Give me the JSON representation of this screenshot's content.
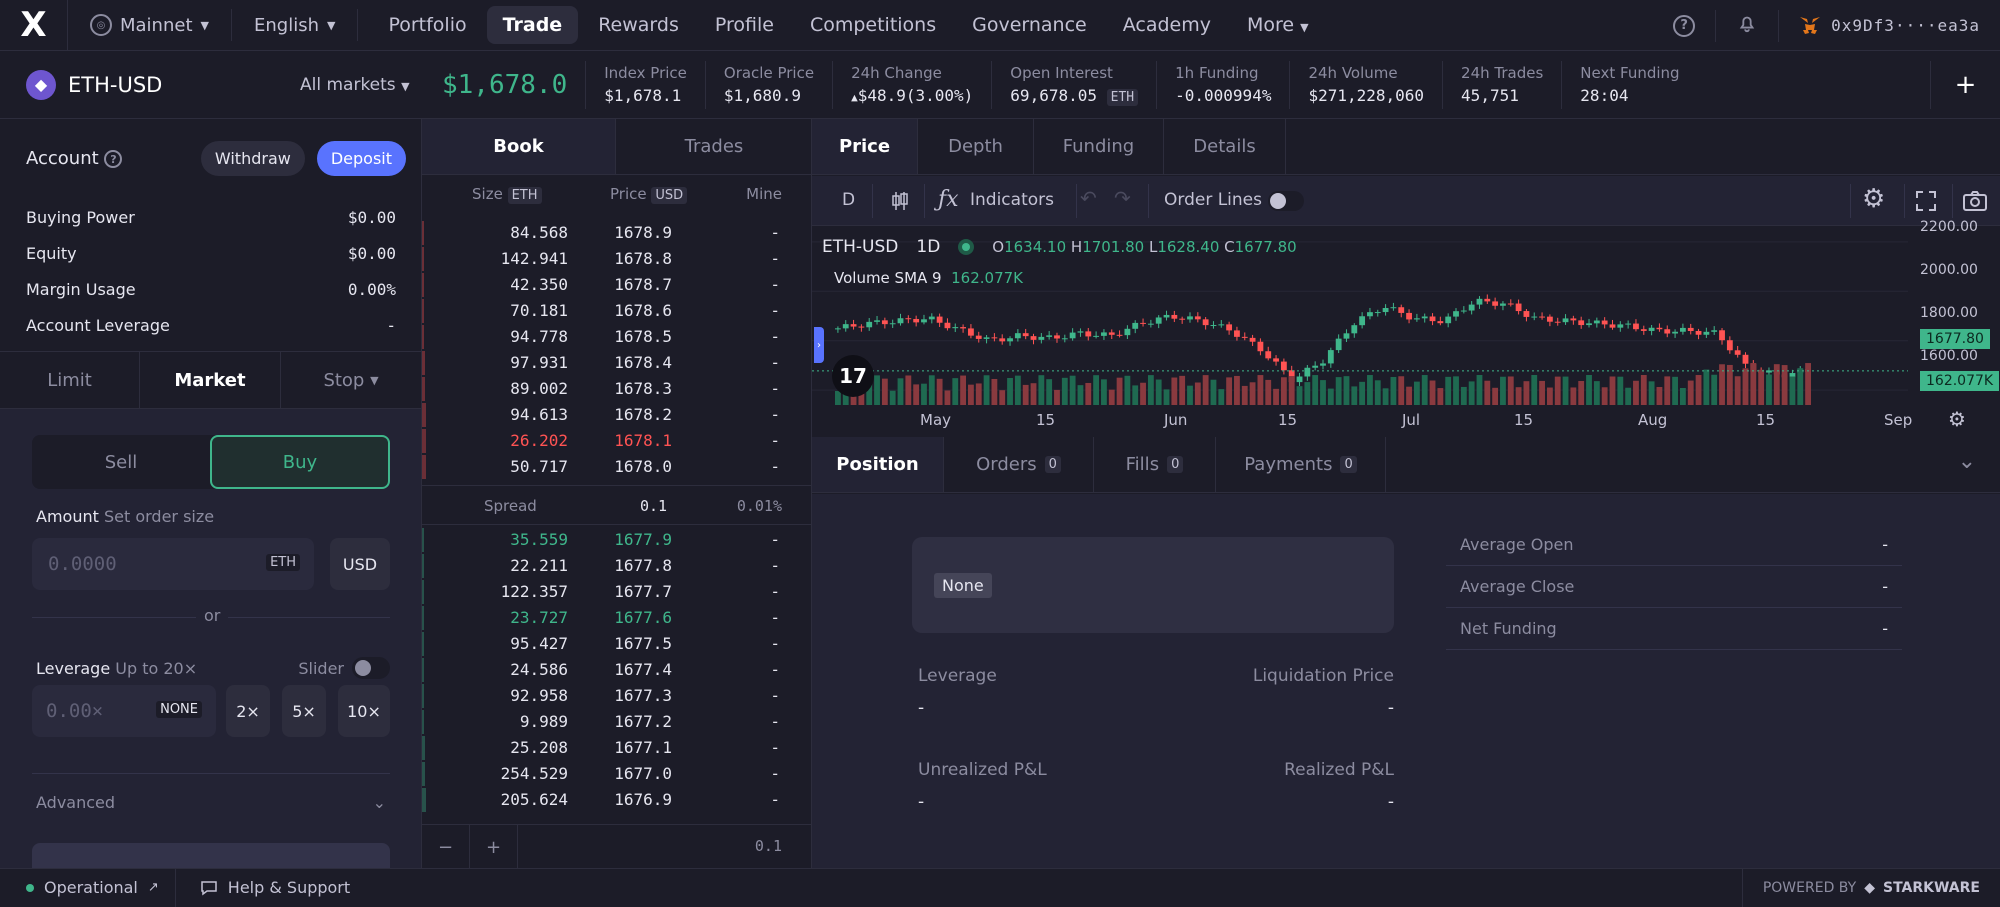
{
  "nav": {
    "network": "Mainnet",
    "language": "English",
    "links": [
      "Portfolio",
      "Trade",
      "Rewards",
      "Profile",
      "Competitions",
      "Governance",
      "Academy",
      "More"
    ],
    "active": "Trade",
    "wallet": "0x9Df3····ea3a"
  },
  "market": {
    "symbol": "ETH-USD",
    "all_markets": "All markets",
    "price": "$1,678.0",
    "stats": [
      {
        "label": "Index Price",
        "value": "$1,678.1"
      },
      {
        "label": "Oracle Price",
        "value": "$1,680.9"
      },
      {
        "label": "24h Change",
        "value": "$48.9",
        "extra": "(3.00%)"
      },
      {
        "label": "Open Interest",
        "value": "69,678.05",
        "tag": "ETH"
      },
      {
        "label": "1h Funding",
        "value": "-0.000994%"
      },
      {
        "label": "24h Volume",
        "value": "$271,228,060"
      },
      {
        "label": "24h Trades",
        "value": "45,751"
      },
      {
        "label": "Next Funding",
        "value": "28:04"
      }
    ]
  },
  "account": {
    "title": "Account",
    "withdraw": "Withdraw",
    "deposit": "Deposit",
    "rows": [
      {
        "label": "Buying Power",
        "value": "$0.00"
      },
      {
        "label": "Equity",
        "value": "$0.00"
      },
      {
        "label": "Margin Usage",
        "value": "0.00%"
      },
      {
        "label": "Account Leverage",
        "value": "-"
      }
    ]
  },
  "order": {
    "types": [
      "Limit",
      "Market",
      "Stop"
    ],
    "active_type": "Market",
    "sell": "Sell",
    "buy": "Buy",
    "amount_label": "Amount",
    "amount_hint": "Set order size",
    "amount_placeholder": "0.0000",
    "amount_unit": "ETH",
    "usd": "USD",
    "or": "or",
    "leverage_label": "Leverage",
    "leverage_hint": "Up to 20×",
    "slider": "Slider",
    "leverage_placeholder": "0.00×",
    "none": "NONE",
    "lev_opts": [
      "2×",
      "5×",
      "10×"
    ],
    "advanced": "Advanced"
  },
  "book": {
    "tabs": [
      "Book",
      "Trades"
    ],
    "headers": {
      "size": "Size",
      "size_tag": "ETH",
      "price": "Price",
      "price_tag": "USD",
      "mine": "Mine"
    },
    "asks": [
      {
        "size": "84.568",
        "price": "1678.9",
        "mine": "-",
        "depth": 0.05
      },
      {
        "size": "142.941",
        "price": "1678.8",
        "mine": "-",
        "depth": 0.07
      },
      {
        "size": "42.350",
        "price": "1678.7",
        "mine": "-",
        "depth": 0.09
      },
      {
        "size": "70.181",
        "price": "1678.6",
        "mine": "-",
        "depth": 0.1
      },
      {
        "size": "94.778",
        "price": "1678.5",
        "mine": "-",
        "depth": 0.12
      },
      {
        "size": "97.931",
        "price": "1678.4",
        "mine": "-",
        "depth": 0.14
      },
      {
        "size": "89.002",
        "price": "1678.3",
        "mine": "-",
        "depth": 0.16
      },
      {
        "size": "94.613",
        "price": "1678.2",
        "mine": "-",
        "depth": 0.18
      },
      {
        "size": "26.202",
        "price": "1678.1",
        "mine": "-",
        "depth": 0.19,
        "highlight": true
      },
      {
        "size": "50.717",
        "price": "1678.0",
        "mine": "-",
        "depth": 0.21
      }
    ],
    "spread_label": "Spread",
    "spread_value": "0.1",
    "spread_pct": "0.01%",
    "bids": [
      {
        "size": "35.559",
        "price": "1677.9",
        "mine": "-",
        "depth": 0.02,
        "highlight": true
      },
      {
        "size": "22.211",
        "price": "1677.8",
        "mine": "-",
        "depth": 0.03
      },
      {
        "size": "122.357",
        "price": "1677.7",
        "mine": "-",
        "depth": 0.05
      },
      {
        "size": "23.727",
        "price": "1677.6",
        "mine": "-",
        "depth": 0.06,
        "highlight": true
      },
      {
        "size": "95.427",
        "price": "1677.5",
        "mine": "-",
        "depth": 0.08
      },
      {
        "size": "24.586",
        "price": "1677.4",
        "mine": "-",
        "depth": 0.09
      },
      {
        "size": "92.958",
        "price": "1677.3",
        "mine": "-",
        "depth": 0.11
      },
      {
        "size": "9.989",
        "price": "1677.2",
        "mine": "-",
        "depth": 0.12
      },
      {
        "size": "25.208",
        "price": "1677.1",
        "mine": "-",
        "depth": 0.13
      },
      {
        "size": "254.529",
        "price": "1677.0",
        "mine": "-",
        "depth": 0.16
      },
      {
        "size": "205.624",
        "price": "1676.9",
        "mine": "-",
        "depth": 0.18
      }
    ],
    "minus": "−",
    "plus": "+",
    "step": "0.1"
  },
  "chart": {
    "tabs": [
      "Price",
      "Depth",
      "Funding",
      "Details"
    ],
    "interval": "D",
    "indicators": "Indicators",
    "order_lines": "Order Lines",
    "legend_symbol": "ETH-USD",
    "legend_interval": "1D",
    "open": "1634.10",
    "high": "1701.80",
    "low": "1628.40",
    "close": "1677.80",
    "volume_label": "Volume SMA 9",
    "volume_value": "162.077K",
    "price_badge": "1677.80",
    "volume_badge": "162.077K",
    "y_ticks": [
      "2200.00",
      "2000.00",
      "1800.00",
      "1600.00"
    ],
    "x_ticks": [
      "May",
      "15",
      "Jun",
      "15",
      "Jul",
      "15",
      "Aug",
      "15",
      "Sep"
    ],
    "tv_logo": "17"
  },
  "chart_data": {
    "type": "candlestick",
    "x": [
      "Apr 21",
      "Apr 25",
      "Apr 29",
      "May 3",
      "May 7",
      "May 11",
      "May 15",
      "May 19",
      "May 23",
      "May 27",
      "May 31",
      "Jun 4",
      "Jun 8",
      "Jun 12",
      "Jun 16",
      "Jun 20",
      "Jun 24",
      "Jun 28",
      "Jul 2",
      "Jul 6",
      "Jul 10",
      "Jul 14",
      "Jul 18",
      "Jul 22",
      "Jul 26",
      "Jul 30",
      "Aug 3",
      "Aug 7",
      "Aug 11",
      "Aug 15",
      "Aug 17",
      "Aug 21",
      "Aug 24"
    ],
    "close": [
      1850,
      1870,
      1880,
      1890,
      1845,
      1800,
      1820,
      1810,
      1830,
      1820,
      1870,
      1900,
      1880,
      1840,
      1760,
      1640,
      1720,
      1870,
      1940,
      1890,
      1880,
      1960,
      1950,
      1890,
      1880,
      1870,
      1860,
      1840,
      1840,
      1830,
      1690,
      1660,
      1677.8
    ],
    "ylim": [
      1540,
      2260
    ],
    "y_ticks": [
      1600,
      1800,
      2000,
      2200
    ],
    "volume_series": "Volume SMA 9"
  },
  "positions": {
    "tabs": [
      {
        "label": "Position"
      },
      {
        "label": "Orders",
        "count": "0"
      },
      {
        "label": "Fills",
        "count": "0"
      },
      {
        "label": "Payments",
        "count": "0"
      }
    ],
    "none": "None",
    "leverage": "Leverage",
    "leverage_v": "-",
    "liq": "Liquidation Price",
    "liq_v": "-",
    "upnl": "Unrealized P&L",
    "upnl_v": "-",
    "rpnl": "Realized P&L",
    "rpnl_v": "-",
    "details": [
      {
        "label": "Average Open",
        "value": "-"
      },
      {
        "label": "Average Close",
        "value": "-"
      },
      {
        "label": "Net Funding",
        "value": "-"
      }
    ]
  },
  "footer": {
    "status": "Operational",
    "help": "Help & Support",
    "powered": "POWERED BY",
    "brand": "STARKWARE"
  },
  "colors": {
    "green": "#3fb68b",
    "red": "#ff5353",
    "accent": "#5973fe",
    "bg": "#1c1c28",
    "panel": "#232334"
  }
}
